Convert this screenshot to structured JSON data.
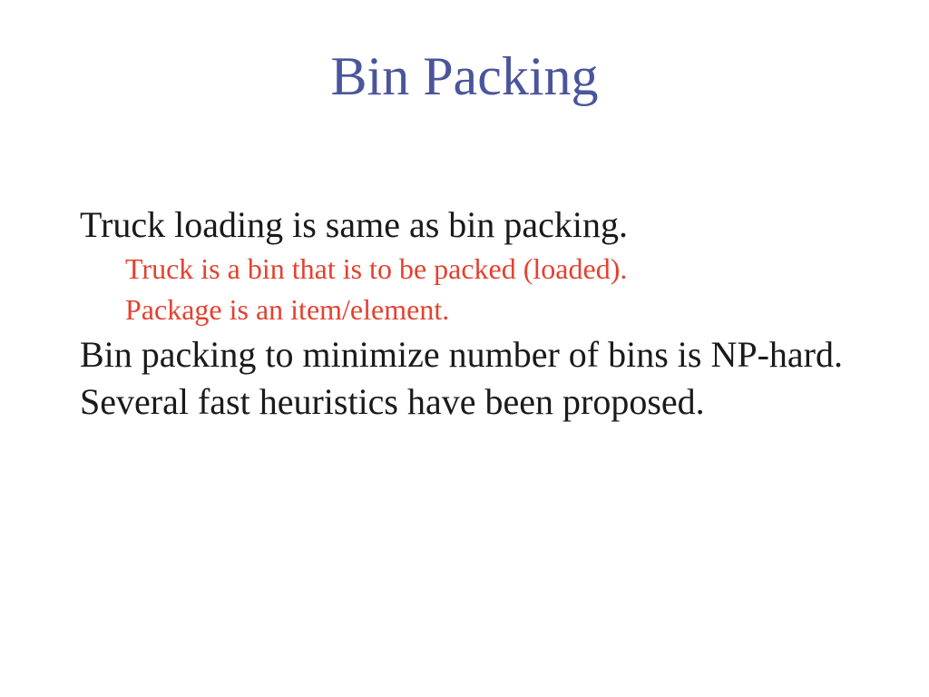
{
  "slide": {
    "title": "Bin Packing",
    "bullets": [
      {
        "level": 1,
        "text": "Truck loading is same as bin packing."
      },
      {
        "level": 2,
        "text": "Truck is a bin that is to be packed (loaded)."
      },
      {
        "level": 2,
        "text": "Package is an item/element."
      },
      {
        "level": 1,
        "text": "Bin packing to minimize number of bins is NP-hard."
      },
      {
        "level": 1,
        "text": "Several fast heuristics have been proposed."
      }
    ]
  },
  "colors": {
    "title": "#4b559c",
    "body": "#1a1a1a",
    "sub_bullet": "#e4412f",
    "background": "#ffffff"
  }
}
